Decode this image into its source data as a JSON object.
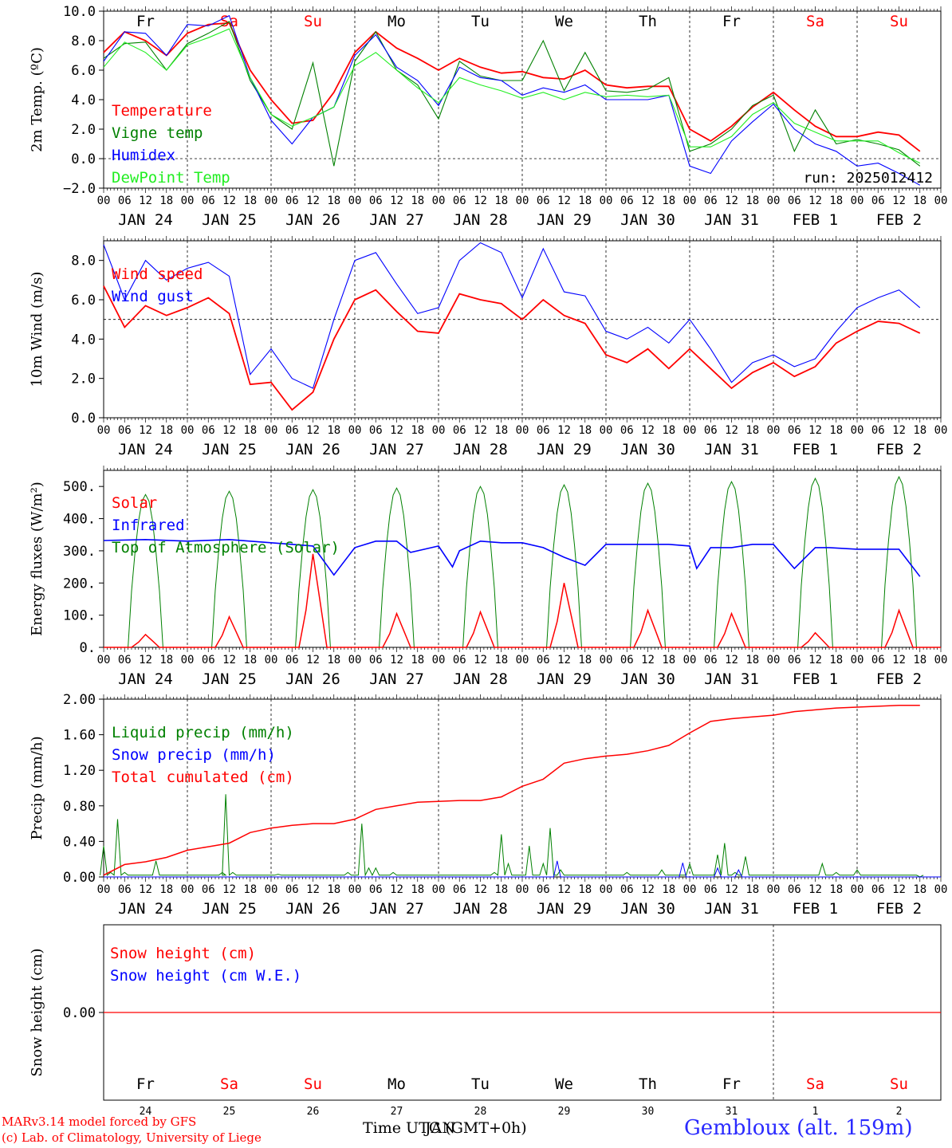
{
  "days": [
    "Fr",
    "Sa",
    "Su",
    "Mo",
    "Tu",
    "We",
    "Th",
    "Fr",
    "Sa",
    "Su"
  ],
  "weekend_days": [
    "Sa",
    "Su"
  ],
  "dates": [
    "JAN 24",
    "JAN 25",
    "JAN 26",
    "JAN 27",
    "JAN 28",
    "JAN 29",
    "JAN 30",
    "JAN 31",
    "FEB  1",
    "FEB  2"
  ],
  "day_numbers": [
    "24",
    "25",
    "26",
    "27",
    "28",
    "29",
    "30",
    "31",
    "1",
    "2"
  ],
  "hour_labels": [
    "00",
    "06",
    "12",
    "18"
  ],
  "run_label": "run: 2025012412",
  "footer": {
    "model": "MARv3.14 model forced by GFS",
    "lab": "(c) Lab. of Climatology, University of Liege",
    "time_label": "Time UTC (GMT+0h)",
    "overlap_label": "JAN",
    "station": "Gembloux (alt. 159m)"
  },
  "colors": {
    "red": "#ff0000",
    "green": "#008000",
    "blue": "#0000ff",
    "lightgreen": "#22ee22",
    "station": "#2a2aff",
    "weekend": "#ff0000"
  },
  "chart_data": [
    {
      "type": "line",
      "ylabel": "2m Temp. (ºC)",
      "ylim": [
        -2,
        10
      ],
      "yticks": [
        "10.0",
        "8.0",
        "6.0",
        "4.0",
        "2.0",
        "0.0",
        "−2.0"
      ],
      "ytick_values": [
        10,
        8,
        6,
        4,
        2,
        0,
        -2
      ],
      "x_unit": "hours since Jan 24 00 UTC",
      "x": [
        0,
        6,
        12,
        18,
        24,
        30,
        36,
        42,
        48,
        54,
        60,
        66,
        72,
        78,
        84,
        90,
        96,
        102,
        108,
        114,
        120,
        126,
        132,
        138,
        144,
        150,
        156,
        162,
        168,
        174,
        180,
        186,
        192,
        198,
        204,
        210,
        216,
        222,
        228,
        234
      ],
      "series": [
        {
          "name": "Temperature",
          "color": "red",
          "values": [
            7.2,
            8.6,
            8.0,
            7.0,
            8.5,
            9.1,
            9.2,
            6.0,
            4.0,
            2.4,
            2.6,
            4.5,
            7.2,
            8.6,
            7.5,
            6.8,
            6.0,
            6.8,
            6.2,
            5.8,
            5.9,
            5.5,
            5.4,
            6.0,
            5.0,
            4.8,
            4.9,
            4.9,
            2.0,
            1.2,
            2.2,
            3.5,
            4.5,
            3.3,
            2.2,
            1.5,
            1.5,
            1.8,
            1.6,
            0.5
          ]
        },
        {
          "name": "Vigne temp",
          "color": "green",
          "values": [
            6.8,
            7.8,
            7.9,
            6.0,
            7.8,
            8.5,
            9.3,
            5.3,
            3.0,
            2.0,
            6.5,
            -0.5,
            6.6,
            8.6,
            6.0,
            5.0,
            2.7,
            6.6,
            5.6,
            5.3,
            5.3,
            8.0,
            4.6,
            7.2,
            4.6,
            4.5,
            4.7,
            5.5,
            0.5,
            1.0,
            2.0,
            3.6,
            4.3,
            0.5,
            3.3,
            1.0,
            1.3,
            1.0,
            0.6,
            -0.5
          ]
        },
        {
          "name": "Humidex",
          "color": "blue",
          "values": [
            6.6,
            8.6,
            8.5,
            7.0,
            9.1,
            9.0,
            9.7,
            5.5,
            2.6,
            1.0,
            2.8,
            3.5,
            7.0,
            8.4,
            6.2,
            5.3,
            3.6,
            6.2,
            5.5,
            5.3,
            4.3,
            4.8,
            4.5,
            5.0,
            4.0,
            4.0,
            4.0,
            4.3,
            -0.5,
            -1.0,
            1.2,
            2.5,
            3.7,
            2.0,
            1.0,
            0.5,
            -0.5,
            -0.3,
            -1.0,
            -1.8
          ]
        },
        {
          "name": "DewPoint Temp",
          "color": "lightgreen",
          "values": [
            6.2,
            7.9,
            7.2,
            6.0,
            7.7,
            8.2,
            8.8,
            5.5,
            3.0,
            2.2,
            2.8,
            3.5,
            6.3,
            7.2,
            6.0,
            4.8,
            3.8,
            5.5,
            5.0,
            4.6,
            4.1,
            4.5,
            4.0,
            4.5,
            4.2,
            4.3,
            4.2,
            4.3,
            0.8,
            0.8,
            1.5,
            3.0,
            3.8,
            2.4,
            1.8,
            1.2,
            1.2,
            1.2,
            0.4,
            -0.3
          ]
        }
      ]
    },
    {
      "type": "line",
      "ylabel": "10m Wind (m/s)",
      "ylim": [
        0,
        9
      ],
      "yticks": [
        "8.0",
        "6.0",
        "4.0",
        "2.0",
        "0.0"
      ],
      "ytick_values": [
        8,
        6,
        4,
        2,
        0
      ],
      "x": [
        0,
        6,
        12,
        18,
        24,
        30,
        36,
        42,
        48,
        54,
        60,
        66,
        72,
        78,
        84,
        90,
        96,
        102,
        108,
        114,
        120,
        126,
        132,
        138,
        144,
        150,
        156,
        162,
        168,
        174,
        180,
        186,
        192,
        198,
        204,
        210,
        216,
        222,
        228,
        234
      ],
      "series": [
        {
          "name": "Wind speed",
          "color": "red",
          "values": [
            6.7,
            4.6,
            5.7,
            5.2,
            5.6,
            6.1,
            5.3,
            1.7,
            1.8,
            0.4,
            1.3,
            4.0,
            6.0,
            6.5,
            5.4,
            4.4,
            4.3,
            6.3,
            6.0,
            5.8,
            5.0,
            6.0,
            5.2,
            4.8,
            3.2,
            2.8,
            3.5,
            2.5,
            3.5,
            2.5,
            1.5,
            2.3,
            2.8,
            2.1,
            2.6,
            3.8,
            4.4,
            4.9,
            4.8,
            4.3
          ]
        },
        {
          "name": "Wind gust",
          "color": "blue",
          "values": [
            8.8,
            6.0,
            8.0,
            7.0,
            7.6,
            7.9,
            7.2,
            2.2,
            3.5,
            2.0,
            1.5,
            5.0,
            8.0,
            8.4,
            6.8,
            5.3,
            5.6,
            8.0,
            8.9,
            8.4,
            6.1,
            8.6,
            6.4,
            6.2,
            4.4,
            4.0,
            4.6,
            3.8,
            5.0,
            3.5,
            1.8,
            2.8,
            3.2,
            2.6,
            3.0,
            4.4,
            5.6,
            6.1,
            6.5,
            5.6
          ]
        }
      ]
    },
    {
      "type": "line",
      "ylabel": "Energy fluxes (W/m²)",
      "ylim": [
        0,
        550
      ],
      "yticks": [
        "500.",
        "400.",
        "300.",
        "200.",
        "100.",
        "0."
      ],
      "ytick_values": [
        500,
        400,
        300,
        200,
        100,
        0
      ],
      "days_solar_peak": [
        40,
        95,
        290,
        105,
        110,
        200,
        115,
        105,
        45,
        115
      ],
      "days_toa_peak": [
        475,
        485,
        490,
        495,
        500,
        505,
        510,
        515,
        525,
        530
      ],
      "infrared": {
        "x": [
          0,
          12,
          24,
          36,
          48,
          54,
          60,
          66,
          72,
          78,
          84,
          88,
          96,
          100,
          102,
          108,
          114,
          120,
          126,
          132,
          138,
          144,
          150,
          156,
          162,
          168,
          170,
          174,
          180,
          186,
          192,
          198,
          204,
          208,
          216,
          228,
          234
        ],
        "values": [
          332,
          335,
          330,
          335,
          325,
          320,
          315,
          225,
          310,
          330,
          330,
          295,
          315,
          250,
          300,
          330,
          325,
          325,
          310,
          280,
          255,
          320,
          320,
          320,
          320,
          315,
          245,
          310,
          310,
          320,
          320,
          245,
          310,
          310,
          305,
          305,
          220
        ]
      },
      "series": [
        {
          "name": "Solar",
          "color": "red"
        },
        {
          "name": "Infrared",
          "color": "blue"
        },
        {
          "name": "Top of Atmosphere (Solar)",
          "color": "green"
        }
      ]
    },
    {
      "type": "line",
      "ylabel": "Precip (mm/h)",
      "ylim": [
        0,
        2
      ],
      "yticks": [
        "2.00",
        "1.60",
        "1.20",
        "0.80",
        "0.40",
        "0.00"
      ],
      "ytick_values": [
        2.0,
        1.6,
        1.2,
        0.8,
        0.4,
        0.0
      ],
      "x": [
        0,
        6,
        12,
        18,
        24,
        30,
        36,
        42,
        48,
        54,
        60,
        66,
        72,
        78,
        84,
        90,
        96,
        102,
        108,
        114,
        120,
        126,
        132,
        138,
        144,
        150,
        156,
        162,
        168,
        174,
        180,
        186,
        192,
        198,
        204,
        210,
        216,
        222,
        228,
        234
      ],
      "liquid_spikes": [
        [
          0,
          0.35
        ],
        [
          2,
          0.05
        ],
        [
          4,
          0.65
        ],
        [
          6,
          0.05
        ],
        [
          15,
          0.18
        ],
        [
          24,
          0.02
        ],
        [
          34,
          0.05
        ],
        [
          35,
          0.93
        ],
        [
          37,
          0.05
        ],
        [
          50,
          0.03
        ],
        [
          70,
          0.05
        ],
        [
          74,
          0.6
        ],
        [
          76,
          0.1
        ],
        [
          78,
          0.1
        ],
        [
          83,
          0.05
        ],
        [
          112,
          0.05
        ],
        [
          114,
          0.48
        ],
        [
          116,
          0.15
        ],
        [
          122,
          0.35
        ],
        [
          126,
          0.15
        ],
        [
          128,
          0.55
        ],
        [
          131,
          0.08
        ],
        [
          150,
          0.05
        ],
        [
          160,
          0.08
        ],
        [
          168,
          0.15
        ],
        [
          176,
          0.25
        ],
        [
          178,
          0.38
        ],
        [
          181,
          0.05
        ],
        [
          184,
          0.23
        ],
        [
          186,
          0.02
        ],
        [
          206,
          0.15
        ],
        [
          210,
          0.05
        ],
        [
          216,
          0.08
        ],
        [
          234,
          0.0
        ]
      ],
      "snow_spikes": [
        [
          130,
          0.18
        ],
        [
          166,
          0.16
        ],
        [
          176,
          0.1
        ],
        [
          182,
          0.08
        ]
      ],
      "series": [
        {
          "name": "Liquid precip (mm/h)",
          "color": "green"
        },
        {
          "name": "Snow precip (mm/h)",
          "color": "blue"
        },
        {
          "name": "Total cumulated (cm)",
          "color": "red",
          "values": [
            0.02,
            0.14,
            0.17,
            0.22,
            0.3,
            0.34,
            0.38,
            0.5,
            0.55,
            0.58,
            0.6,
            0.6,
            0.65,
            0.76,
            0.8,
            0.84,
            0.85,
            0.86,
            0.86,
            0.9,
            1.02,
            1.1,
            1.28,
            1.33,
            1.36,
            1.38,
            1.42,
            1.48,
            1.62,
            1.75,
            1.78,
            1.8,
            1.82,
            1.86,
            1.88,
            1.9,
            1.91,
            1.92,
            1.93,
            1.93
          ]
        }
      ]
    },
    {
      "type": "line",
      "ylabel": "Snow height (cm)",
      "ylim": [
        -1,
        1
      ],
      "yticks": [
        "0.00"
      ],
      "ytick_values": [
        0
      ],
      "series": [
        {
          "name": "Snow height (cm)",
          "color": "red",
          "values": [
            0,
            0
          ]
        },
        {
          "name": "Snow height (cm W.E.)",
          "color": "blue",
          "values": []
        }
      ]
    }
  ]
}
